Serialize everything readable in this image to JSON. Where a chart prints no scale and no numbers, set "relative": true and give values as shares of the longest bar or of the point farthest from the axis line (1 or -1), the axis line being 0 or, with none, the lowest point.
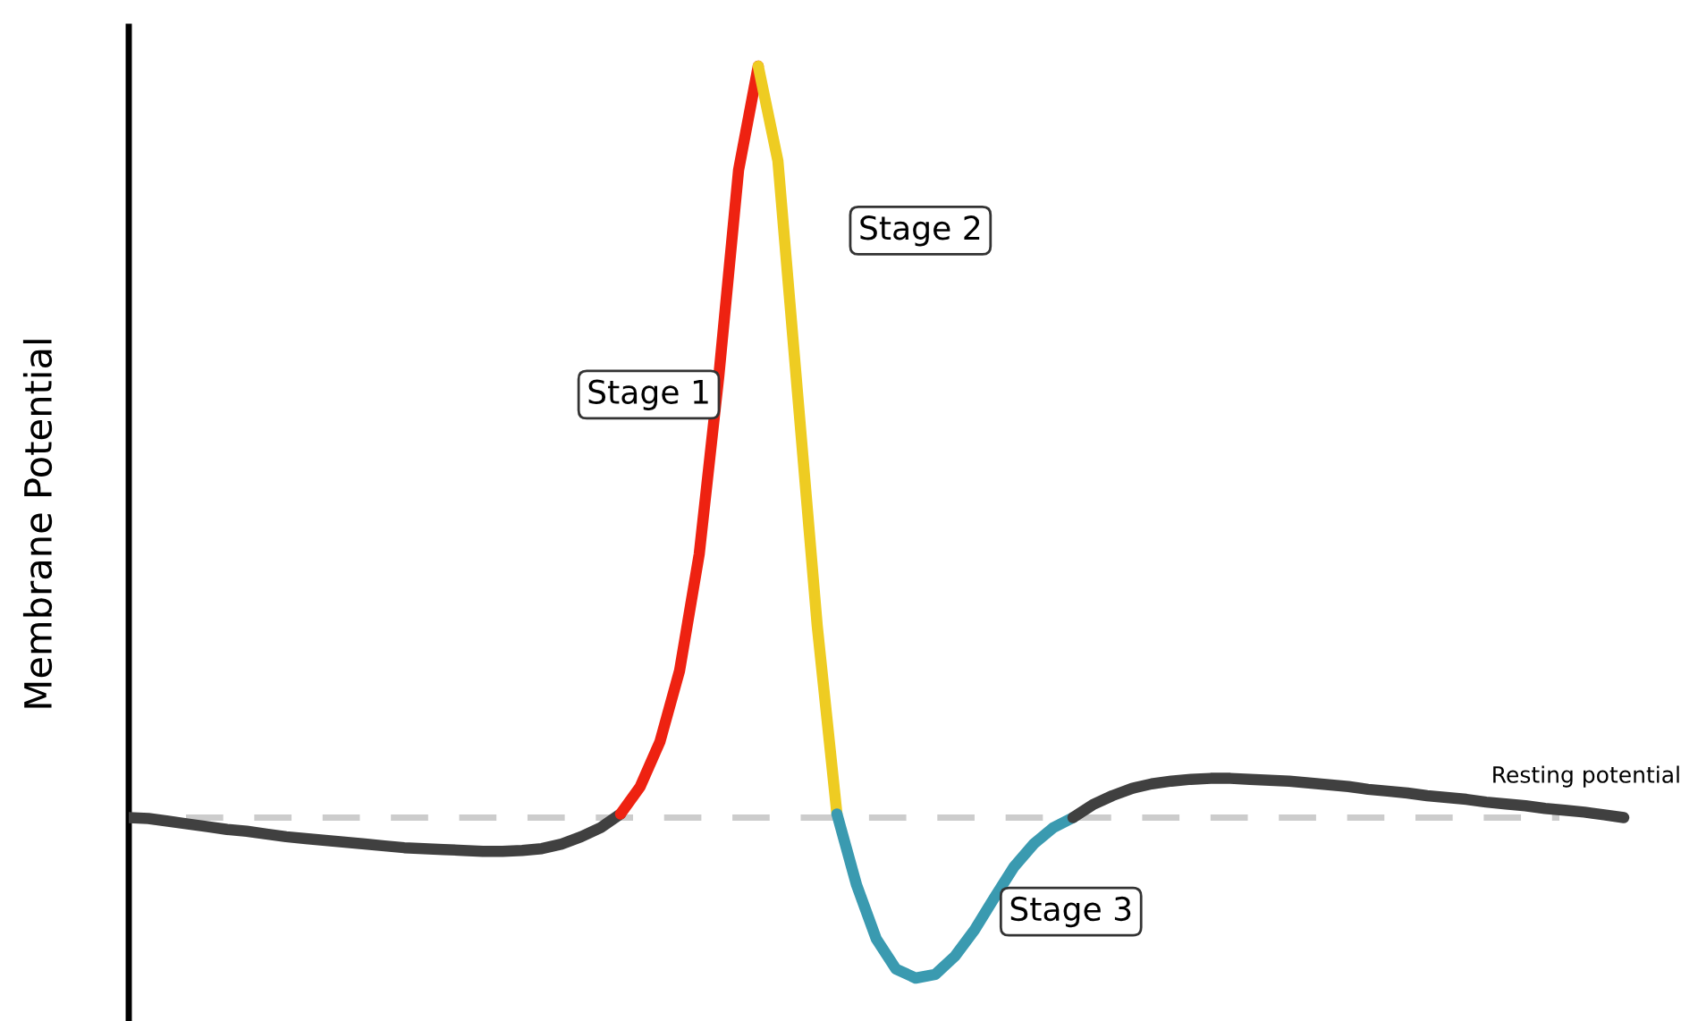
{
  "chart_data": {
    "type": "line",
    "relative": true,
    "ylabel": "Membrane Potential",
    "categories": [
      null,
      null,
      null,
      null,
      null,
      null,
      null,
      null,
      null,
      null,
      null,
      null,
      null,
      null,
      null,
      null,
      null,
      null,
      null,
      null,
      null,
      null,
      null,
      null,
      null,
      null,
      null,
      null,
      null,
      null,
      null,
      null,
      null,
      null,
      null,
      null,
      null,
      null,
      null,
      null,
      null,
      null,
      null,
      null,
      null,
      null,
      null,
      null,
      null,
      null,
      null,
      null,
      null,
      null,
      null,
      null,
      null,
      null,
      null,
      null,
      null,
      null,
      null,
      null,
      null,
      null,
      null,
      null,
      null,
      null,
      null,
      null,
      null,
      null,
      null,
      null,
      null
    ],
    "series": [
      {
        "color": "#404040",
        "values": [
          0.176,
          0.175,
          0.172,
          0.169,
          0.166,
          0.163,
          0.161,
          0.158,
          0.155,
          0.153,
          0.151,
          0.149,
          0.147,
          0.145,
          0.143,
          0.142,
          0.141,
          0.14,
          0.139,
          0.139,
          0.14,
          0.142,
          0.147,
          0.155,
          0.165,
          0.18,
          null,
          null,
          null,
          null,
          null,
          null,
          null,
          null,
          null,
          null,
          null,
          null,
          null,
          null,
          null,
          null,
          null,
          null,
          null,
          null,
          null,
          null,
          null,
          null,
          null,
          null,
          null,
          null,
          null,
          null,
          null,
          null,
          null,
          null,
          null,
          null,
          null,
          null,
          null,
          null,
          null,
          null,
          null,
          null,
          null,
          null,
          null,
          null,
          null,
          null,
          null
        ]
      },
      {
        "color": "#ee2211",
        "values": [
          null,
          null,
          null,
          null,
          null,
          null,
          null,
          null,
          null,
          null,
          null,
          null,
          null,
          null,
          null,
          null,
          null,
          null,
          null,
          null,
          null,
          null,
          null,
          null,
          null,
          0.18,
          0.21,
          0.259,
          0.337,
          0.465,
          0.661,
          0.886,
          1,
          null,
          null,
          null,
          null,
          null,
          null,
          null,
          null,
          null,
          null,
          null,
          null,
          null,
          null,
          null,
          null,
          null,
          null,
          null,
          null,
          null,
          null,
          null,
          null,
          null,
          null,
          null,
          null,
          null,
          null,
          null,
          null,
          null,
          null,
          null,
          null,
          null,
          null,
          null,
          null,
          null,
          null,
          null,
          null
        ]
      },
      {
        "color": "#eecc22",
        "values": [
          null,
          null,
          null,
          null,
          null,
          null,
          null,
          null,
          null,
          null,
          null,
          null,
          null,
          null,
          null,
          null,
          null,
          null,
          null,
          null,
          null,
          null,
          null,
          null,
          null,
          null,
          null,
          null,
          null,
          null,
          null,
          null,
          1,
          0.896,
          0.641,
          0.386,
          0.18,
          null,
          null,
          null,
          null,
          null,
          null,
          null,
          null,
          null,
          null,
          null,
          null,
          null,
          null,
          null,
          null,
          null,
          null,
          null,
          null,
          null,
          null,
          null,
          null,
          null,
          null,
          null,
          null,
          null,
          null,
          null,
          null,
          null,
          null,
          null,
          null,
          null,
          null,
          null,
          null
        ]
      },
      {
        "color": "#3a9ab0",
        "values": [
          null,
          null,
          null,
          null,
          null,
          null,
          null,
          null,
          null,
          null,
          null,
          null,
          null,
          null,
          null,
          null,
          null,
          null,
          null,
          null,
          null,
          null,
          null,
          null,
          null,
          null,
          null,
          null,
          null,
          null,
          null,
          null,
          null,
          null,
          null,
          null,
          0.18,
          0.102,
          0.043,
          0.01,
          0,
          0.004,
          0.024,
          0.053,
          0.088,
          0.122,
          0.147,
          0.165,
          0.176,
          null,
          null,
          null,
          null,
          null,
          null,
          null,
          null,
          null,
          null,
          null,
          null,
          null,
          null,
          null,
          null,
          null,
          null,
          null,
          null,
          null,
          null,
          null,
          null,
          null,
          null,
          null,
          null
        ]
      },
      {
        "color": "#404040",
        "values": [
          null,
          null,
          null,
          null,
          null,
          null,
          null,
          null,
          null,
          null,
          null,
          null,
          null,
          null,
          null,
          null,
          null,
          null,
          null,
          null,
          null,
          null,
          null,
          null,
          null,
          null,
          null,
          null,
          null,
          null,
          null,
          null,
          null,
          null,
          null,
          null,
          null,
          null,
          null,
          null,
          null,
          null,
          null,
          null,
          null,
          null,
          null,
          null,
          0.176,
          0.19,
          0.2,
          0.208,
          0.213,
          0.216,
          0.218,
          0.219,
          0.219,
          0.218,
          0.217,
          0.216,
          0.214,
          0.212,
          0.21,
          0.207,
          0.205,
          0.203,
          0.2,
          0.198,
          0.196,
          0.193,
          0.191,
          0.189,
          0.186,
          0.184,
          0.182,
          0.179,
          0.176
        ]
      }
    ],
    "ref_lines": [
      {
        "axis": "y",
        "value": 0.176,
        "label": "Resting potential",
        "color": "#cccccc",
        "line_style": "dashed"
      }
    ],
    "annotations": [
      "Stage 1",
      "Stage 2",
      "Stage 3"
    ],
    "line_style": "solid",
    "marker": "none",
    "grid": false,
    "legend": false
  }
}
